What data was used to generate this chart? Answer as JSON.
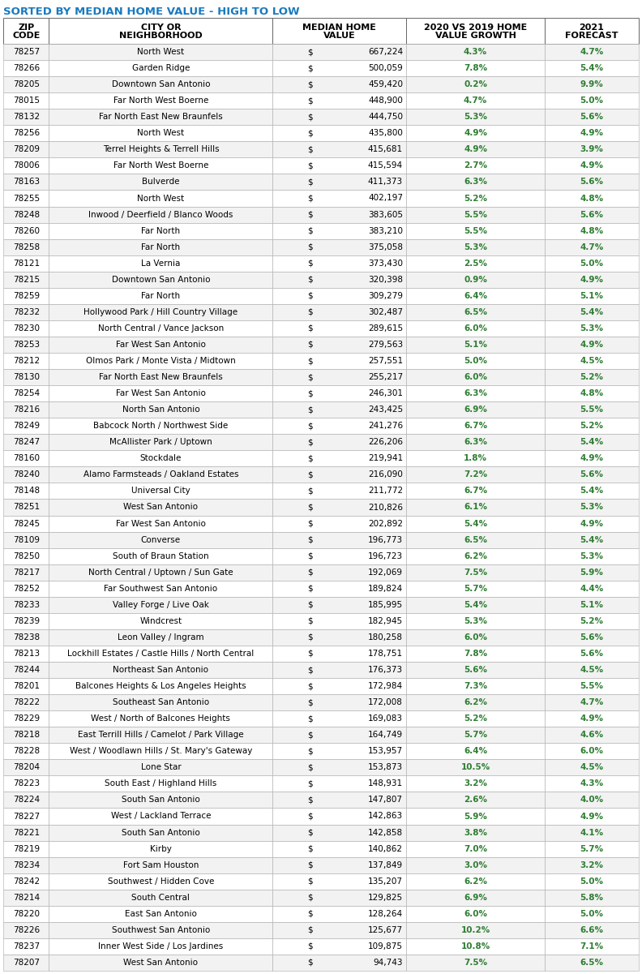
{
  "title": "SORTED BY MEDIAN HOME VALUE - HIGH TO LOW",
  "title_color": "#1a7abf",
  "headers_line1": [
    "ZIP",
    "CITY OR",
    "MEDIAN HOME",
    "2020 VS 2019 HOME",
    "2021"
  ],
  "headers_line2": [
    "CODE",
    "NEIGHBORHOOD",
    "VALUE",
    "VALUE GROWTH",
    "FORECAST"
  ],
  "rows": [
    [
      "78257",
      "North West",
      "$",
      "667,224",
      "4.3%",
      "4.7%"
    ],
    [
      "78266",
      "Garden Ridge",
      "$",
      "500,059",
      "7.8%",
      "5.4%"
    ],
    [
      "78205",
      "Downtown San Antonio",
      "$",
      "459,420",
      "0.2%",
      "9.9%"
    ],
    [
      "78015",
      "Far North West Boerne",
      "$",
      "448,900",
      "4.7%",
      "5.0%"
    ],
    [
      "78132",
      "Far North East New Braunfels",
      "$",
      "444,750",
      "5.3%",
      "5.6%"
    ],
    [
      "78256",
      "North West",
      "$",
      "435,800",
      "4.9%",
      "4.9%"
    ],
    [
      "78209",
      "Terrel Heights & Terrell Hills",
      "$",
      "415,681",
      "4.9%",
      "3.9%"
    ],
    [
      "78006",
      "Far North West Boerne",
      "$",
      "415,594",
      "2.7%",
      "4.9%"
    ],
    [
      "78163",
      "Bulverde",
      "$",
      "411,373",
      "6.3%",
      "5.6%"
    ],
    [
      "78255",
      "North West",
      "$",
      "402,197",
      "5.2%",
      "4.8%"
    ],
    [
      "78248",
      "Inwood / Deerfield / Blanco Woods",
      "$",
      "383,605",
      "5.5%",
      "5.6%"
    ],
    [
      "78260",
      "Far North",
      "$",
      "383,210",
      "5.5%",
      "4.8%"
    ],
    [
      "78258",
      "Far North",
      "$",
      "375,058",
      "5.3%",
      "4.7%"
    ],
    [
      "78121",
      "La Vernia",
      "$",
      "373,430",
      "2.5%",
      "5.0%"
    ],
    [
      "78215",
      "Downtown San Antonio",
      "$",
      "320,398",
      "0.9%",
      "4.9%"
    ],
    [
      "78259",
      "Far North",
      "$",
      "309,279",
      "6.4%",
      "5.1%"
    ],
    [
      "78232",
      "Hollywood Park / Hill Country Village",
      "$",
      "302,487",
      "6.5%",
      "5.4%"
    ],
    [
      "78230",
      "North Central / Vance Jackson",
      "$",
      "289,615",
      "6.0%",
      "5.3%"
    ],
    [
      "78253",
      "Far West San Antonio",
      "$",
      "279,563",
      "5.1%",
      "4.9%"
    ],
    [
      "78212",
      "Olmos Park / Monte Vista / Midtown",
      "$",
      "257,551",
      "5.0%",
      "4.5%"
    ],
    [
      "78130",
      "Far North East New Braunfels",
      "$",
      "255,217",
      "6.0%",
      "5.2%"
    ],
    [
      "78254",
      "Far West San Antonio",
      "$",
      "246,301",
      "6.3%",
      "4.8%"
    ],
    [
      "78216",
      "North San Antonio",
      "$",
      "243,425",
      "6.9%",
      "5.5%"
    ],
    [
      "78249",
      "Babcock North / Northwest Side",
      "$",
      "241,276",
      "6.7%",
      "5.2%"
    ],
    [
      "78247",
      "McAllister Park / Uptown",
      "$",
      "226,206",
      "6.3%",
      "5.4%"
    ],
    [
      "78160",
      "Stockdale",
      "$",
      "219,941",
      "1.8%",
      "4.9%"
    ],
    [
      "78240",
      "Alamo Farmsteads / Oakland Estates",
      "$",
      "216,090",
      "7.2%",
      "5.6%"
    ],
    [
      "78148",
      "Universal City",
      "$",
      "211,772",
      "6.7%",
      "5.4%"
    ],
    [
      "78251",
      "West San Antonio",
      "$",
      "210,826",
      "6.1%",
      "5.3%"
    ],
    [
      "78245",
      "Far West San Antonio",
      "$",
      "202,892",
      "5.4%",
      "4.9%"
    ],
    [
      "78109",
      "Converse",
      "$",
      "196,773",
      "6.5%",
      "5.4%"
    ],
    [
      "78250",
      "South of Braun Station",
      "$",
      "196,723",
      "6.2%",
      "5.3%"
    ],
    [
      "78217",
      "North Central / Uptown / Sun Gate",
      "$",
      "192,069",
      "7.5%",
      "5.9%"
    ],
    [
      "78252",
      "Far Southwest San Antonio",
      "$",
      "189,824",
      "5.7%",
      "4.4%"
    ],
    [
      "78233",
      "Valley Forge / Live Oak",
      "$",
      "185,995",
      "5.4%",
      "5.1%"
    ],
    [
      "78239",
      "Windcrest",
      "$",
      "182,945",
      "5.3%",
      "5.2%"
    ],
    [
      "78238",
      "Leon Valley / Ingram",
      "$",
      "180,258",
      "6.0%",
      "5.6%"
    ],
    [
      "78213",
      "Lockhill Estates / Castle Hills / North Central",
      "$",
      "178,751",
      "7.8%",
      "5.6%"
    ],
    [
      "78244",
      "Northeast San Antonio",
      "$",
      "176,373",
      "5.6%",
      "4.5%"
    ],
    [
      "78201",
      "Balcones Heights & Los Angeles Heights",
      "$",
      "172,984",
      "7.3%",
      "5.5%"
    ],
    [
      "78222",
      "Southeast San Antonio",
      "$",
      "172,008",
      "6.2%",
      "4.7%"
    ],
    [
      "78229",
      "West / North of Balcones Heights",
      "$",
      "169,083",
      "5.2%",
      "4.9%"
    ],
    [
      "78218",
      "East Terrill Hills / Camelot / Park Village",
      "$",
      "164,749",
      "5.7%",
      "4.6%"
    ],
    [
      "78228",
      "West / Woodlawn Hills / St. Mary's Gateway",
      "$",
      "153,957",
      "6.4%",
      "6.0%"
    ],
    [
      "78204",
      "Lone Star",
      "$",
      "153,873",
      "10.5%",
      "4.5%"
    ],
    [
      "78223",
      "South East / Highland Hills",
      "$",
      "148,931",
      "3.2%",
      "4.3%"
    ],
    [
      "78224",
      "South San Antonio",
      "$",
      "147,807",
      "2.6%",
      "4.0%"
    ],
    [
      "78227",
      "West / Lackland Terrace",
      "$",
      "142,863",
      "5.9%",
      "4.9%"
    ],
    [
      "78221",
      "South San Antonio",
      "$",
      "142,858",
      "3.8%",
      "4.1%"
    ],
    [
      "78219",
      "Kirby",
      "$",
      "140,862",
      "7.0%",
      "5.7%"
    ],
    [
      "78234",
      "Fort Sam Houston",
      "$",
      "137,849",
      "3.0%",
      "3.2%"
    ],
    [
      "78242",
      "Southwest / Hidden Cove",
      "$",
      "135,207",
      "6.2%",
      "5.0%"
    ],
    [
      "78214",
      "South Central",
      "$",
      "129,825",
      "6.9%",
      "5.8%"
    ],
    [
      "78220",
      "East San Antonio",
      "$",
      "128,264",
      "6.0%",
      "5.0%"
    ],
    [
      "78226",
      "Southwest San Antonio",
      "$",
      "125,677",
      "10.2%",
      "6.6%"
    ],
    [
      "78237",
      "Inner West Side / Los Jardines",
      "$",
      "109,875",
      "10.8%",
      "7.1%"
    ],
    [
      "78207",
      "West San Antonio",
      "$",
      "94,743",
      "7.5%",
      "6.5%"
    ]
  ],
  "green_color": "#2e7d32",
  "black_color": "#000000",
  "title_fontsize": 9.5,
  "header_fontsize": 8.0,
  "data_fontsize": 7.5,
  "row_bg_even": "#f2f2f2",
  "row_bg_odd": "#ffffff",
  "border_color": "#aaaaaa",
  "header_border_color": "#666666"
}
